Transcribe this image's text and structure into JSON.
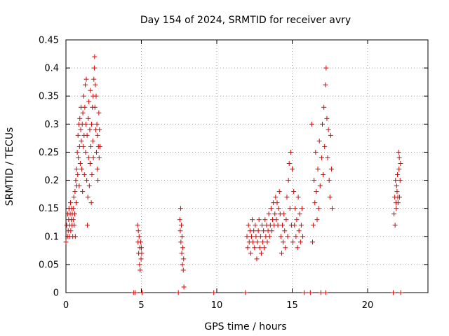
{
  "chart_data": {
    "type": "scatter",
    "title": "Day 154 of 2024, SRMTID for receiver avry",
    "xlabel": "GPS time / hours",
    "ylabel": "SRMTID / TECUs",
    "xlim": [
      0,
      24
    ],
    "ylim": [
      0,
      0.45
    ],
    "xticks": [
      0,
      5,
      10,
      15,
      20
    ],
    "yticks": [
      0,
      0.05,
      0.1,
      0.15,
      0.2,
      0.25,
      0.3,
      0.35,
      0.4,
      0.45
    ],
    "grid": true,
    "marker": "+",
    "color": "#e00000",
    "series": [
      {
        "name": "SRMTID",
        "points": [
          [
            0.0,
            0.09
          ],
          [
            0.05,
            0.12
          ],
          [
            0.1,
            0.1
          ],
          [
            0.12,
            0.14
          ],
          [
            0.15,
            0.11
          ],
          [
            0.18,
            0.13
          ],
          [
            0.2,
            0.15
          ],
          [
            0.22,
            0.1
          ],
          [
            0.25,
            0.12
          ],
          [
            0.28,
            0.14
          ],
          [
            0.3,
            0.16
          ],
          [
            0.32,
            0.11
          ],
          [
            0.35,
            0.13
          ],
          [
            0.38,
            0.15
          ],
          [
            0.4,
            0.12
          ],
          [
            0.42,
            0.14
          ],
          [
            0.45,
            0.1
          ],
          [
            0.48,
            0.13
          ],
          [
            0.5,
            0.15
          ],
          [
            0.52,
            0.17
          ],
          [
            0.55,
            0.12
          ],
          [
            0.58,
            0.14
          ],
          [
            0.6,
            0.18
          ],
          [
            0.62,
            0.1
          ],
          [
            0.65,
            0.2
          ],
          [
            0.68,
            0.16
          ],
          [
            0.7,
            0.22
          ],
          [
            0.72,
            0.19
          ],
          [
            0.75,
            0.25
          ],
          [
            0.78,
            0.21
          ],
          [
            0.8,
            0.28
          ],
          [
            0.82,
            0.24
          ],
          [
            0.85,
            0.3
          ],
          [
            0.88,
            0.19
          ],
          [
            0.9,
            0.26
          ],
          [
            0.92,
            0.31
          ],
          [
            0.95,
            0.23
          ],
          [
            0.98,
            0.29
          ],
          [
            1.0,
            0.33
          ],
          [
            1.02,
            0.27
          ],
          [
            1.05,
            0.22
          ],
          [
            1.08,
            0.3
          ],
          [
            1.1,
            0.18
          ],
          [
            1.12,
            0.32
          ],
          [
            1.15,
            0.26
          ],
          [
            1.18,
            0.35
          ],
          [
            1.2,
            0.28
          ],
          [
            1.22,
            0.21
          ],
          [
            1.25,
            0.33
          ],
          [
            1.28,
            0.37
          ],
          [
            1.3,
            0.25
          ],
          [
            1.32,
            0.3
          ],
          [
            1.35,
            0.38
          ],
          [
            1.38,
            0.2
          ],
          [
            1.4,
            0.28
          ],
          [
            1.42,
            0.12
          ],
          [
            1.45,
            0.17
          ],
          [
            1.48,
            0.31
          ],
          [
            1.5,
            0.24
          ],
          [
            1.52,
            0.34
          ],
          [
            1.55,
            0.19
          ],
          [
            1.58,
            0.29
          ],
          [
            1.6,
            0.23
          ],
          [
            1.62,
            0.36
          ],
          [
            1.65,
            0.26
          ],
          [
            1.68,
            0.16
          ],
          [
            1.7,
            0.3
          ],
          [
            1.72,
            0.21
          ],
          [
            1.75,
            0.33
          ],
          [
            1.78,
            0.27
          ],
          [
            1.8,
            0.35
          ],
          [
            1.82,
            0.24
          ],
          [
            1.85,
            0.38
          ],
          [
            1.88,
            0.4
          ],
          [
            1.9,
            0.42
          ],
          [
            1.92,
            0.33
          ],
          [
            1.95,
            0.37
          ],
          [
            1.98,
            0.29
          ],
          [
            2.0,
            0.35
          ],
          [
            2.02,
            0.25
          ],
          [
            2.05,
            0.3
          ],
          [
            2.08,
            0.22
          ],
          [
            2.1,
            0.28
          ],
          [
            2.12,
            0.2
          ],
          [
            2.15,
            0.26
          ],
          [
            2.18,
            0.32
          ],
          [
            2.2,
            0.24
          ],
          [
            2.22,
            0.29
          ],
          [
            2.25,
            0.26
          ],
          [
            4.5,
            0.0
          ],
          [
            4.6,
            0.0
          ],
          [
            4.75,
            0.12
          ],
          [
            4.78,
            0.09
          ],
          [
            4.8,
            0.11
          ],
          [
            4.82,
            0.07
          ],
          [
            4.85,
            0.1
          ],
          [
            4.88,
            0.05
          ],
          [
            4.9,
            0.08
          ],
          [
            4.92,
            0.04
          ],
          [
            4.95,
            0.09
          ],
          [
            4.98,
            0.06
          ],
          [
            5.0,
            0.08
          ],
          [
            5.02,
            0.07
          ],
          [
            5.05,
            0.0
          ],
          [
            7.45,
            0.0
          ],
          [
            7.55,
            0.13
          ],
          [
            7.58,
            0.11
          ],
          [
            7.6,
            0.15
          ],
          [
            7.62,
            0.09
          ],
          [
            7.65,
            0.12
          ],
          [
            7.68,
            0.07
          ],
          [
            7.7,
            0.1
          ],
          [
            7.72,
            0.05
          ],
          [
            7.75,
            0.08
          ],
          [
            7.78,
            0.04
          ],
          [
            7.8,
            0.06
          ],
          [
            7.82,
            0.01
          ],
          [
            9.8,
            0.0
          ],
          [
            11.9,
            0.0
          ],
          [
            12.0,
            0.1
          ],
          [
            12.05,
            0.08
          ],
          [
            12.1,
            0.12
          ],
          [
            12.15,
            0.09
          ],
          [
            12.2,
            0.11
          ],
          [
            12.25,
            0.07
          ],
          [
            12.3,
            0.1
          ],
          [
            12.35,
            0.13
          ],
          [
            12.4,
            0.09
          ],
          [
            12.45,
            0.11
          ],
          [
            12.5,
            0.08
          ],
          [
            12.55,
            0.12
          ],
          [
            12.6,
            0.1
          ],
          [
            12.65,
            0.06
          ],
          [
            12.7,
            0.09
          ],
          [
            12.75,
            0.11
          ],
          [
            12.8,
            0.13
          ],
          [
            12.85,
            0.08
          ],
          [
            12.9,
            0.1
          ],
          [
            12.95,
            0.07
          ],
          [
            13.0,
            0.12
          ],
          [
            13.05,
            0.09
          ],
          [
            13.1,
            0.11
          ],
          [
            13.15,
            0.08
          ],
          [
            13.2,
            0.13
          ],
          [
            13.25,
            0.1
          ],
          [
            13.3,
            0.12
          ],
          [
            13.35,
            0.09
          ],
          [
            13.4,
            0.11
          ],
          [
            13.45,
            0.14
          ],
          [
            13.5,
            0.1
          ],
          [
            13.55,
            0.12
          ],
          [
            13.6,
            0.15
          ],
          [
            13.65,
            0.11
          ],
          [
            13.7,
            0.13
          ],
          [
            13.75,
            0.16
          ],
          [
            13.8,
            0.12
          ],
          [
            13.85,
            0.14
          ],
          [
            13.9,
            0.17
          ],
          [
            13.95,
            0.13
          ],
          [
            14.0,
            0.16
          ],
          [
            14.05,
            0.12
          ],
          [
            14.1,
            0.15
          ],
          [
            14.15,
            0.18
          ],
          [
            14.2,
            0.14
          ],
          [
            14.25,
            0.1
          ],
          [
            14.3,
            0.07
          ],
          [
            14.35,
            0.12
          ],
          [
            14.4,
            0.09
          ],
          [
            14.45,
            0.14
          ],
          [
            14.5,
            0.11
          ],
          [
            14.55,
            0.08
          ],
          [
            14.6,
            0.13
          ],
          [
            14.65,
            0.17
          ],
          [
            14.7,
            0.1
          ],
          [
            14.75,
            0.2
          ],
          [
            14.8,
            0.23
          ],
          [
            14.85,
            0.15
          ],
          [
            14.9,
            0.25
          ],
          [
            14.95,
            0.12
          ],
          [
            15.0,
            0.22
          ],
          [
            15.05,
            0.09
          ],
          [
            15.1,
            0.18
          ],
          [
            15.15,
            0.12
          ],
          [
            15.2,
            0.15
          ],
          [
            15.25,
            0.1
          ],
          [
            15.3,
            0.13
          ],
          [
            15.35,
            0.08
          ],
          [
            15.4,
            0.17
          ],
          [
            15.45,
            0.11
          ],
          [
            15.5,
            0.14
          ],
          [
            15.55,
            0.09
          ],
          [
            15.6,
            0.12
          ],
          [
            15.65,
            0.15
          ],
          [
            15.7,
            0.1
          ],
          [
            15.8,
            0.0
          ],
          [
            16.2,
            0.0
          ],
          [
            16.3,
            0.3
          ],
          [
            16.35,
            0.09
          ],
          [
            16.4,
            0.12
          ],
          [
            16.45,
            0.2
          ],
          [
            16.5,
            0.16
          ],
          [
            16.55,
            0.25
          ],
          [
            16.6,
            0.18
          ],
          [
            16.65,
            0.13
          ],
          [
            16.7,
            0.22
          ],
          [
            16.75,
            0.15
          ],
          [
            16.8,
            0.27
          ],
          [
            16.85,
            0.19
          ],
          [
            16.9,
            0.0
          ],
          [
            16.95,
            0.24
          ],
          [
            17.0,
            0.3
          ],
          [
            17.05,
            0.21
          ],
          [
            17.1,
            0.33
          ],
          [
            17.15,
            0.26
          ],
          [
            17.2,
            0.37
          ],
          [
            17.22,
            0.0
          ],
          [
            17.25,
            0.4
          ],
          [
            17.3,
            0.31
          ],
          [
            17.35,
            0.24
          ],
          [
            17.4,
            0.29
          ],
          [
            17.45,
            0.2
          ],
          [
            17.5,
            0.17
          ],
          [
            17.55,
            0.28
          ],
          [
            17.6,
            0.22
          ],
          [
            17.65,
            0.15
          ],
          [
            21.7,
            0.0
          ],
          [
            21.75,
            0.14
          ],
          [
            21.8,
            0.17
          ],
          [
            21.82,
            0.12
          ],
          [
            21.85,
            0.2
          ],
          [
            21.88,
            0.16
          ],
          [
            21.9,
            0.15
          ],
          [
            21.92,
            0.19
          ],
          [
            21.95,
            0.18
          ],
          [
            21.98,
            0.21
          ],
          [
            22.0,
            0.17
          ],
          [
            22.02,
            0.16
          ],
          [
            22.05,
            0.25
          ],
          [
            22.08,
            0.22
          ],
          [
            22.1,
            0.24
          ],
          [
            22.12,
            0.17
          ],
          [
            22.15,
            0.2
          ],
          [
            22.18,
            0.23
          ],
          [
            22.2,
            0.0
          ]
        ]
      }
    ]
  }
}
